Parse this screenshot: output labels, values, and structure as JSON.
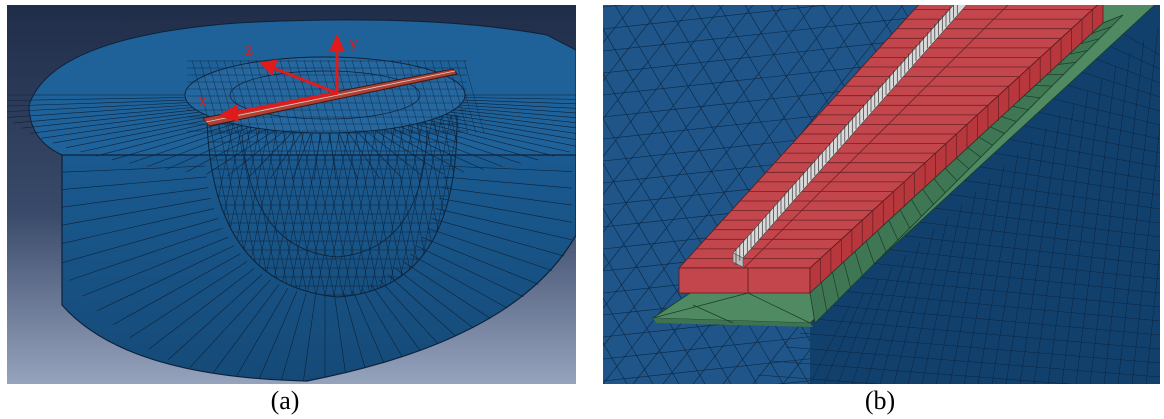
{
  "panel_a": {
    "caption": "(a)",
    "axes": {
      "x": "x",
      "y": "y",
      "z": "z"
    },
    "colors": {
      "bg_top": "#263552",
      "bg_bottom": "#8d9ab4",
      "mesh": "#1f5e94",
      "mesh_cut": "#1b5586",
      "line": "#0d2238",
      "axis": "#e01b1b",
      "bar": "#b0392f"
    }
  },
  "panel_b": {
    "caption": "(b)",
    "colors": {
      "mesh": "#1f5588",
      "mesh_dark": "#0f3a66",
      "line": "#0b2745",
      "red": "#c2464c",
      "red_side": "#b7373d",
      "green": "#4f8a63",
      "green_side": "#3d7351",
      "fiber": "#e6e6e6"
    }
  }
}
